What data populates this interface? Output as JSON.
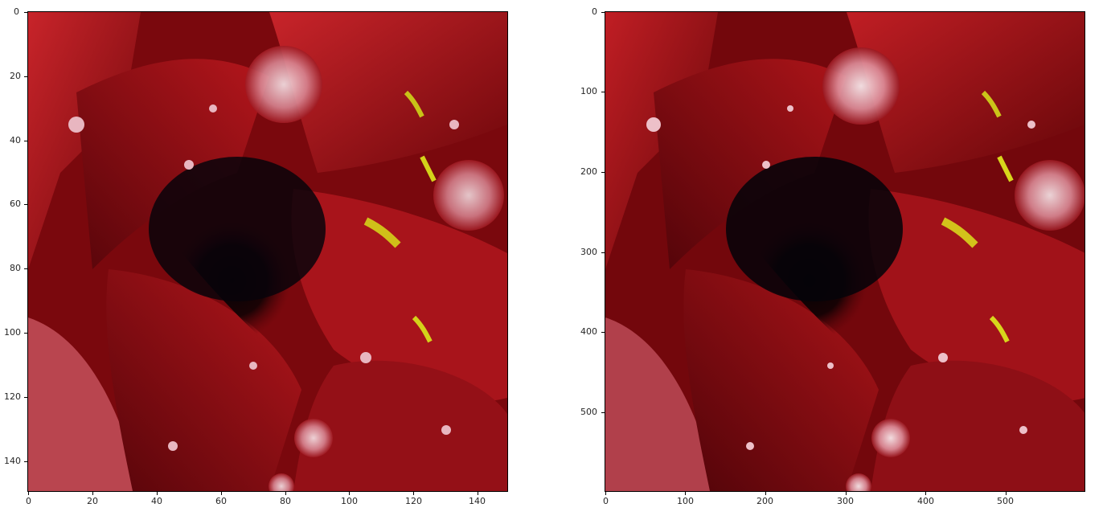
{
  "panels": [
    {
      "id": "low-res",
      "image_subject": "red-rose-petals-with-water-droplets",
      "y_ticks": [
        "0",
        "20",
        "40",
        "60",
        "80",
        "100",
        "120",
        "140"
      ],
      "x_ticks": [
        "0",
        "20",
        "40",
        "60",
        "80",
        "100",
        "120",
        "140"
      ],
      "x_range": [
        0,
        150
      ],
      "y_range": [
        0,
        150
      ]
    },
    {
      "id": "high-res",
      "image_subject": "red-rose-petals-with-water-droplets",
      "y_ticks": [
        "0",
        "100",
        "200",
        "300",
        "400",
        "500"
      ],
      "x_ticks": [
        "0",
        "100",
        "200",
        "300",
        "400",
        "500"
      ],
      "x_range": [
        0,
        600
      ],
      "y_range": [
        0,
        600
      ]
    }
  ],
  "colors": {
    "petal_dark": "#5a0508",
    "petal_mid": "#9b0f14",
    "petal_light": "#c8242a",
    "shadow": "#0a0508",
    "highlight_yellow": "#d4d21a",
    "droplet": "#f0d6dc"
  }
}
